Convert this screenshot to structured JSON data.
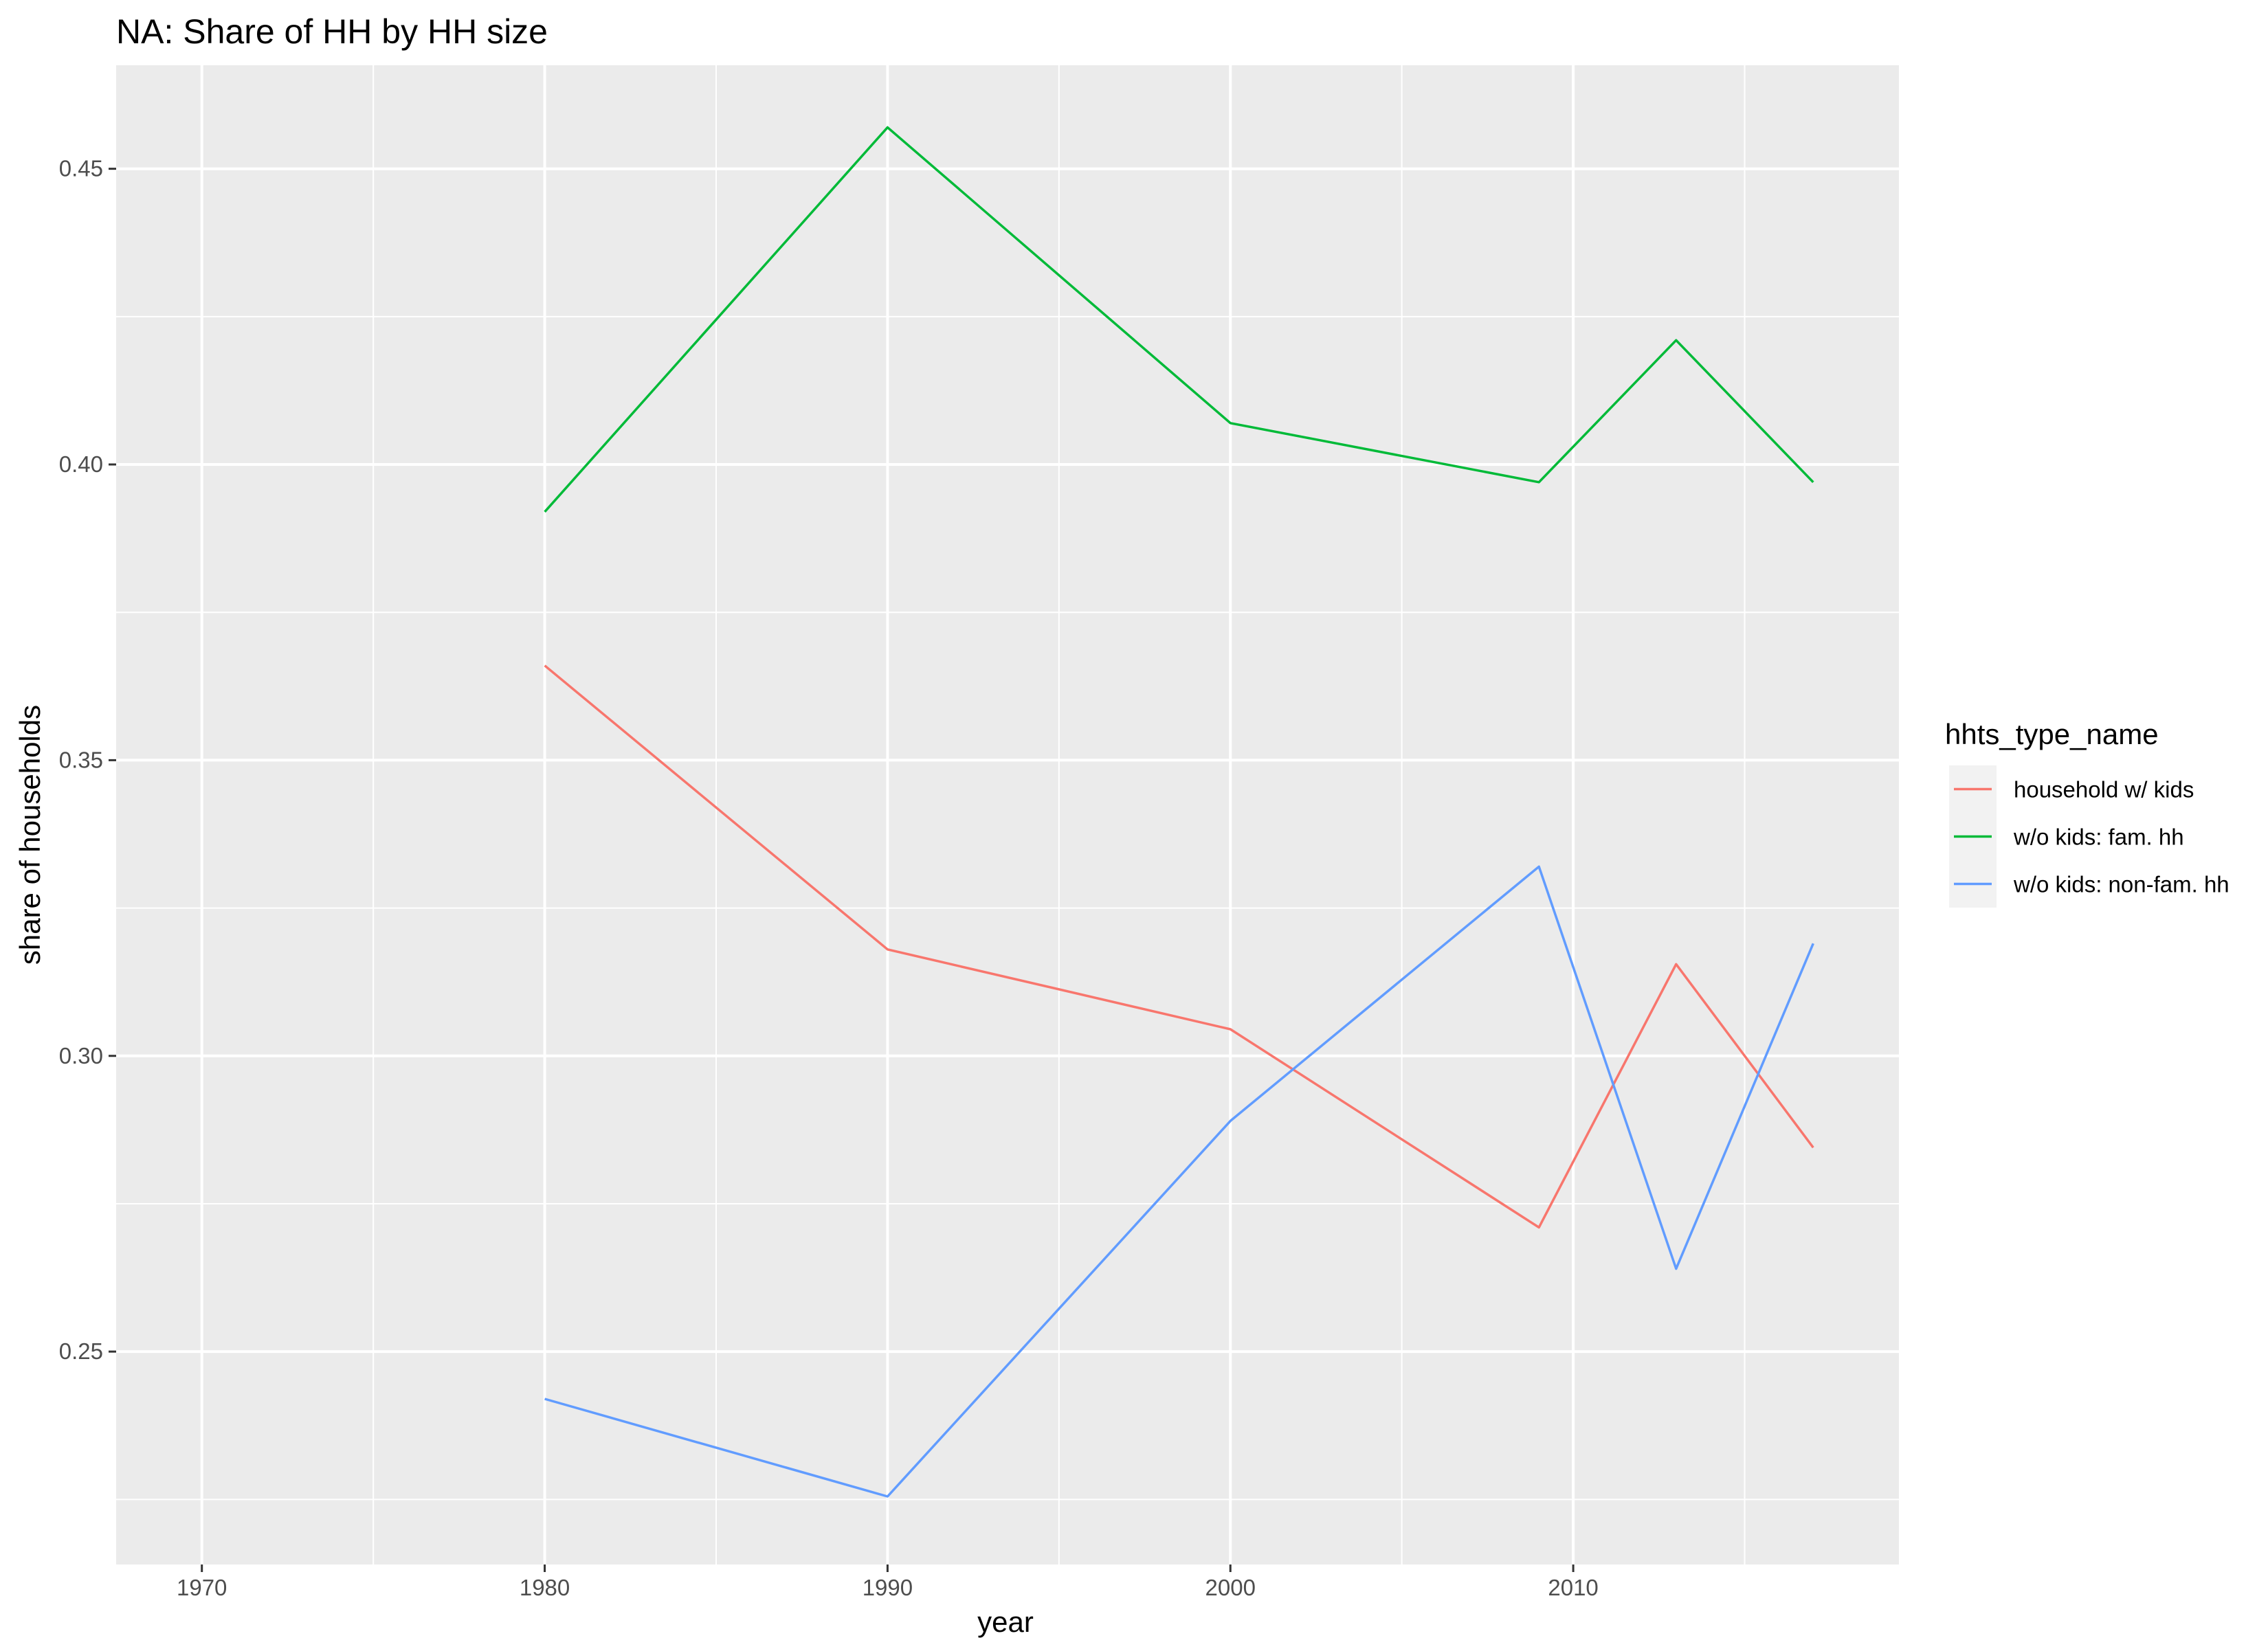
{
  "chart_data": {
    "type": "line",
    "title": "NA: Share of HH by HH size",
    "xlabel": "year",
    "ylabel": "share of households",
    "xlim": [
      1967.5,
      2019.5
    ],
    "ylim": [
      0.214,
      0.4675
    ],
    "x_ticks": [
      1970,
      1980,
      1990,
      2000,
      2010
    ],
    "x_tick_labels": [
      "1970",
      "1980",
      "1990",
      "2000",
      "2010"
    ],
    "x_minor": [
      1975,
      1985,
      1995,
      2005,
      2015
    ],
    "y_ticks": [
      0.25,
      0.3,
      0.35,
      0.4,
      0.45
    ],
    "y_tick_labels": [
      "0.25",
      "0.30",
      "0.35",
      "0.40",
      "0.45"
    ],
    "y_minor": [
      0.225,
      0.275,
      0.325,
      0.375,
      0.425
    ],
    "grid": true,
    "legend": {
      "title": "hhts_type_name",
      "position": "right"
    },
    "series": [
      {
        "name": "household w/ kids",
        "color": "#F8766D",
        "x": [
          1980,
          1990,
          2000,
          2009,
          2013,
          2017
        ],
        "y": [
          0.366,
          0.318,
          0.3045,
          0.271,
          0.3155,
          0.2845
        ]
      },
      {
        "name": "w/o kids: fam. hh",
        "color": "#00BA38",
        "x": [
          1980,
          1990,
          2000,
          2009,
          2013,
          2017
        ],
        "y": [
          0.392,
          0.457,
          0.407,
          0.397,
          0.421,
          0.397
        ]
      },
      {
        "name": "w/o kids: non-fam. hh",
        "color": "#619CFF",
        "x": [
          1980,
          1990,
          2000,
          2009,
          2013,
          2017
        ],
        "y": [
          0.242,
          0.2255,
          0.289,
          0.332,
          0.264,
          0.319
        ]
      }
    ]
  }
}
